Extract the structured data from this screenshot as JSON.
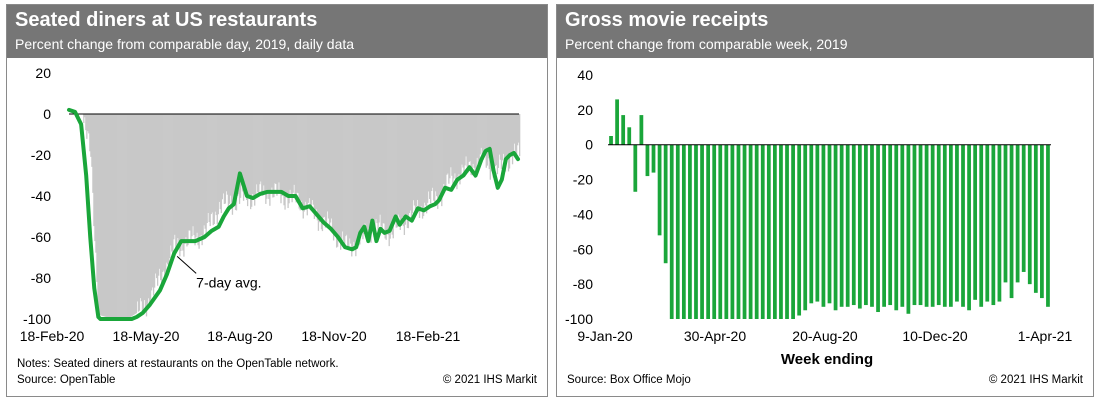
{
  "chart_data": [
    {
      "type": "line",
      "title": "Seated diners at US restaurants",
      "subtitle": "Percent change from comparable day, 2019, daily data",
      "ylim": [
        -100,
        20
      ],
      "yticks": [
        20,
        0,
        -20,
        -40,
        -60,
        -80,
        -100
      ],
      "x_tick_labels": [
        "18-Feb-20",
        "18-May-20",
        "18-Aug-20",
        "18-Nov-20",
        "18-Feb-21"
      ],
      "x_range": [
        "2020-02-18",
        "2021-05-08"
      ],
      "grid": false,
      "series": [
        {
          "name": "",
          "style": "grey vertical bars (daily)",
          "color": "#c8c8c8",
          "x": [
            "2020-02-18",
            "2020-03-01",
            "2020-03-10",
            "2020-03-18",
            "2020-04-01",
            "2020-04-15",
            "2020-05-01",
            "2020-05-18",
            "2020-06-01",
            "2020-06-15",
            "2020-07-01",
            "2020-07-15",
            "2020-08-01",
            "2020-08-18",
            "2020-09-01",
            "2020-09-15",
            "2020-10-01",
            "2020-10-15",
            "2020-11-01",
            "2020-11-18",
            "2020-12-01",
            "2020-12-15",
            "2021-01-01",
            "2021-01-15",
            "2021-02-01",
            "2021-02-18",
            "2021-03-01",
            "2021-03-15",
            "2021-04-01",
            "2021-04-15",
            "2021-05-01",
            "2021-05-08"
          ],
          "y": [
            2,
            0,
            -20,
            -98,
            -100,
            -100,
            -95,
            -80,
            -65,
            -62,
            -58,
            -45,
            -42,
            -40,
            -38,
            -40,
            -42,
            -48,
            -55,
            -65,
            -62,
            -55,
            -58,
            -52,
            -45,
            -40,
            -32,
            -28,
            -22,
            -28,
            -20,
            -20
          ]
        },
        {
          "name": "7-day avg.",
          "color": "#1aa63a",
          "x": [
            "2020-02-18",
            "2020-02-24",
            "2020-03-01",
            "2020-03-06",
            "2020-03-10",
            "2020-03-14",
            "2020-03-18",
            "2020-03-20",
            "2020-04-01",
            "2020-04-20",
            "2020-04-25",
            "2020-05-01",
            "2020-05-08",
            "2020-05-18",
            "2020-05-25",
            "2020-06-01",
            "2020-06-08",
            "2020-06-15",
            "2020-06-22",
            "2020-07-01",
            "2020-07-08",
            "2020-07-15",
            "2020-07-20",
            "2020-07-25",
            "2020-07-30",
            "2020-08-05",
            "2020-08-12",
            "2020-08-18",
            "2020-08-25",
            "2020-09-01",
            "2020-09-08",
            "2020-09-15",
            "2020-09-22",
            "2020-09-29",
            "2020-10-06",
            "2020-10-13",
            "2020-10-20",
            "2020-10-27",
            "2020-11-03",
            "2020-11-10",
            "2020-11-17",
            "2020-11-24",
            "2020-11-28",
            "2020-12-02",
            "2020-12-06",
            "2020-12-10",
            "2020-12-14",
            "2020-12-18",
            "2020-12-22",
            "2020-12-26",
            "2020-12-31",
            "2021-01-06",
            "2021-01-10",
            "2021-01-16",
            "2021-01-22",
            "2021-01-28",
            "2021-02-03",
            "2021-02-09",
            "2021-02-14",
            "2021-02-18",
            "2021-02-24",
            "2021-03-02",
            "2021-03-08",
            "2021-03-14",
            "2021-03-20",
            "2021-03-26",
            "2021-04-01",
            "2021-04-05",
            "2021-04-09",
            "2021-04-13",
            "2021-04-17",
            "2021-04-21",
            "2021-04-25",
            "2021-04-29",
            "2021-05-03",
            "2021-05-07"
          ],
          "y": [
            2,
            1,
            -5,
            -30,
            -60,
            -85,
            -99,
            -100,
            -100,
            -100,
            -99,
            -97,
            -93,
            -86,
            -78,
            -68,
            -62,
            -62,
            -62,
            -60,
            -57,
            -55,
            -50,
            -46,
            -44,
            -29,
            -40,
            -41,
            -39,
            -38,
            -38,
            -38,
            -40,
            -40,
            -46,
            -45,
            -49,
            -53,
            -56,
            -60,
            -65,
            -66,
            -65,
            -58,
            -55,
            -62,
            -52,
            -62,
            -56,
            -58,
            -57,
            -50,
            -54,
            -50,
            -52,
            -46,
            -47,
            -45,
            -44,
            -42,
            -36,
            -37,
            -32,
            -30,
            -26,
            -30,
            -22,
            -18,
            -17,
            -28,
            -36,
            -32,
            -22,
            -20,
            -19,
            -22
          ]
        }
      ],
      "annotation": "7-day avg.",
      "notes": "Notes: Seated diners at restaurants on the OpenTable network.",
      "source": "Source: OpenTable",
      "copyright": "© 2021 IHS Markit"
    },
    {
      "type": "bar",
      "title": "Gross movie receipts",
      "subtitle": "Percent change from comparable week, 2019",
      "xlabel": "Week ending",
      "ylim": [
        -100,
        40
      ],
      "yticks": [
        40,
        20,
        0,
        -20,
        -40,
        -60,
        -80,
        -100
      ],
      "x_tick_labels": [
        "9-Jan-20",
        "30-Apr-20",
        "20-Aug-20",
        "10-Dec-20",
        "1-Apr-21"
      ],
      "series": [
        {
          "name": "",
          "color": "#1aa63a",
          "values": [
            5,
            26,
            17,
            10,
            -27,
            17,
            -18,
            -16,
            -52,
            -68,
            -100,
            -100,
            -100,
            -100,
            -100,
            -100,
            -100,
            -100,
            -100,
            -100,
            -100,
            -100,
            -100,
            -100,
            -100,
            -100,
            -100,
            -100,
            -100,
            -100,
            -100,
            -98,
            -95,
            -91,
            -90,
            -93,
            -91,
            -95,
            -93,
            -93,
            -92,
            -94,
            -92,
            -93,
            -96,
            -93,
            -92,
            -95,
            -93,
            -97,
            -92,
            -92,
            -93,
            -93,
            -92,
            -93,
            -93,
            -90,
            -93,
            -95,
            -89,
            -93,
            -90,
            -92,
            -90,
            -79,
            -88,
            -79,
            -73,
            -80,
            -85,
            -88,
            -93
          ]
        }
      ],
      "source": "Source: Box Office Mojo",
      "copyright": "© 2021 IHS Markit"
    }
  ]
}
